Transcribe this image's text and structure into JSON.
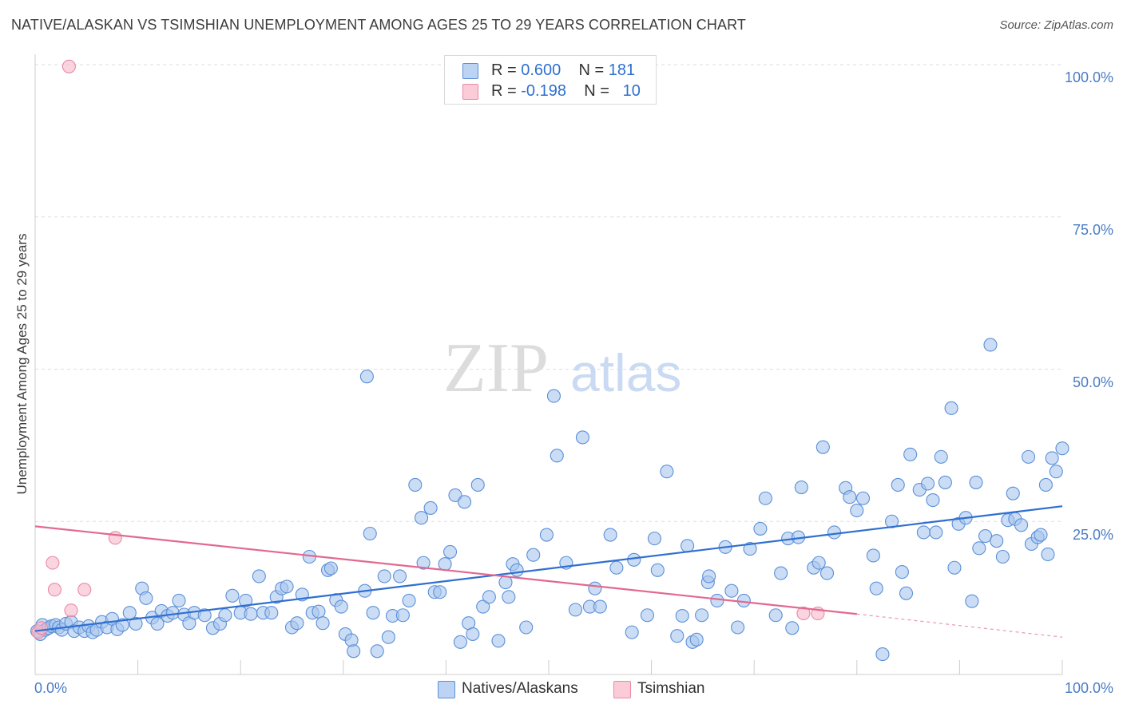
{
  "header": {
    "title": "NATIVE/ALASKAN VS TSIMSHIAN UNEMPLOYMENT AMONG AGES 25 TO 29 YEARS CORRELATION CHART",
    "source": "Source: ZipAtlas.com"
  },
  "watermark": {
    "zip": "ZIP",
    "atlas": "atlas"
  },
  "stats": {
    "row1": {
      "r_label": "R = ",
      "r_value": "0.600",
      "n_label": "N = ",
      "n_value": "181"
    },
    "row2": {
      "r_label": "R = ",
      "r_value": "-0.198",
      "n_label": "N = ",
      "n_value": "10"
    }
  },
  "legend": {
    "item1": "Natives/Alaskans",
    "item2": "Tsimshian"
  },
  "colors": {
    "blue_fill": "#a9c6ef",
    "blue_stroke": "#5b8fd8",
    "blue_line": "#2f6fd0",
    "pink_fill": "#f6b9cb",
    "pink_stroke": "#e98aa8",
    "pink_line": "#e2698f",
    "tick_text": "#4a7cc4",
    "grid": "#dddddd"
  },
  "chart_data": {
    "type": "scatter",
    "title": "NATIVE/ALASKAN VS TSIMSHIAN UNEMPLOYMENT AMONG AGES 25 TO 29 YEARS CORRELATION CHART",
    "xlabel": "",
    "ylabel": "Unemployment Among Ages 25 to 29 years",
    "xlim": [
      0,
      100
    ],
    "ylim": [
      0,
      100
    ],
    "x_tick_labels": [
      "0.0%",
      "100.0%"
    ],
    "y_ticks": [
      25,
      50,
      75,
      100
    ],
    "y_tick_labels": [
      "25.0%",
      "50.0%",
      "75.0%",
      "100.0%"
    ],
    "grid": "horizontal dashed",
    "legend_position": "bottom-center",
    "series": [
      {
        "name": "Natives/Alaskans",
        "R": 0.6,
        "N": 181,
        "trend": {
          "x": [
            0,
            100
          ],
          "y": [
            7,
            27.5
          ]
        },
        "points": [
          [
            0.2,
            7.0
          ],
          [
            0.5,
            6.5
          ],
          [
            0.7,
            8.0
          ],
          [
            1.0,
            7.2
          ],
          [
            1.3,
            7.5
          ],
          [
            1.6,
            7.8
          ],
          [
            2.0,
            8.0
          ],
          [
            2.3,
            7.6
          ],
          [
            2.6,
            7.2
          ],
          [
            3.0,
            8.2
          ],
          [
            3.5,
            8.5
          ],
          [
            3.8,
            7.0
          ],
          [
            4.3,
            7.6
          ],
          [
            4.8,
            7.0
          ],
          [
            5.2,
            7.8
          ],
          [
            5.6,
            6.8
          ],
          [
            6.0,
            7.2
          ],
          [
            6.5,
            8.5
          ],
          [
            7.0,
            7.6
          ],
          [
            7.5,
            9.0
          ],
          [
            8.0,
            7.3
          ],
          [
            8.5,
            8.0
          ],
          [
            9.2,
            10.0
          ],
          [
            9.8,
            8.2
          ],
          [
            10.4,
            14.0
          ],
          [
            10.8,
            12.4
          ],
          [
            11.4,
            9.2
          ],
          [
            11.9,
            8.2
          ],
          [
            12.3,
            10.3
          ],
          [
            12.9,
            9.5
          ],
          [
            13.4,
            10.0
          ],
          [
            14.0,
            12.0
          ],
          [
            14.5,
            9.7
          ],
          [
            15.0,
            8.3
          ],
          [
            15.5,
            10.0
          ],
          [
            16.5,
            9.6
          ],
          [
            17.3,
            7.5
          ],
          [
            18.0,
            8.2
          ],
          [
            18.5,
            9.6
          ],
          [
            19.2,
            12.8
          ],
          [
            20.0,
            10.0
          ],
          [
            20.5,
            12.0
          ],
          [
            21.0,
            9.8
          ],
          [
            21.8,
            16.0
          ],
          [
            22.2,
            10.0
          ],
          [
            23.0,
            10.0
          ],
          [
            23.5,
            12.6
          ],
          [
            24.0,
            14.0
          ],
          [
            24.5,
            14.3
          ],
          [
            25.0,
            7.6
          ],
          [
            25.5,
            8.3
          ],
          [
            26.0,
            13.0
          ],
          [
            26.7,
            19.2
          ],
          [
            27.0,
            10.0
          ],
          [
            27.6,
            10.2
          ],
          [
            28.0,
            8.3
          ],
          [
            28.5,
            17.0
          ],
          [
            28.8,
            17.3
          ],
          [
            29.3,
            12.1
          ],
          [
            29.8,
            11.0
          ],
          [
            30.2,
            6.5
          ],
          [
            30.8,
            5.5
          ],
          [
            31.0,
            3.7
          ],
          [
            32.1,
            13.6
          ],
          [
            32.6,
            23.0
          ],
          [
            32.3,
            48.8
          ],
          [
            32.9,
            10.0
          ],
          [
            33.3,
            3.7
          ],
          [
            34.0,
            16.0
          ],
          [
            34.4,
            6.0
          ],
          [
            34.8,
            9.5
          ],
          [
            35.5,
            16.0
          ],
          [
            35.8,
            9.6
          ],
          [
            36.4,
            12.0
          ],
          [
            37.0,
            31.0
          ],
          [
            37.6,
            25.6
          ],
          [
            37.8,
            18.2
          ],
          [
            38.5,
            27.2
          ],
          [
            38.9,
            13.4
          ],
          [
            39.4,
            13.4
          ],
          [
            39.9,
            18.0
          ],
          [
            40.4,
            20.0
          ],
          [
            40.9,
            29.3
          ],
          [
            41.4,
            5.2
          ],
          [
            41.8,
            28.2
          ],
          [
            42.2,
            8.3
          ],
          [
            42.6,
            6.5
          ],
          [
            43.1,
            31.0
          ],
          [
            43.6,
            11.0
          ],
          [
            44.2,
            12.6
          ],
          [
            45.1,
            5.4
          ],
          [
            45.8,
            15.0
          ],
          [
            46.5,
            18.0
          ],
          [
            46.1,
            12.6
          ],
          [
            46.9,
            17.0
          ],
          [
            47.8,
            7.6
          ],
          [
            48.5,
            19.5
          ],
          [
            49.8,
            22.8
          ],
          [
            50.5,
            45.6
          ],
          [
            50.8,
            35.8
          ],
          [
            51.7,
            18.2
          ],
          [
            52.6,
            10.5
          ],
          [
            53.3,
            38.8
          ],
          [
            54.0,
            11.0
          ],
          [
            54.5,
            14.0
          ],
          [
            55.0,
            11.0
          ],
          [
            56.0,
            22.8
          ],
          [
            56.6,
            17.4
          ],
          [
            58.1,
            6.8
          ],
          [
            58.3,
            18.7
          ],
          [
            59.6,
            9.6
          ],
          [
            60.3,
            22.2
          ],
          [
            60.6,
            17.0
          ],
          [
            61.5,
            33.2
          ],
          [
            62.5,
            6.2
          ],
          [
            63.0,
            9.5
          ],
          [
            63.5,
            21.0
          ],
          [
            64.0,
            5.2
          ],
          [
            64.4,
            5.6
          ],
          [
            64.9,
            9.6
          ],
          [
            65.5,
            15.0
          ],
          [
            65.6,
            16.0
          ],
          [
            66.4,
            12.0
          ],
          [
            67.2,
            20.8
          ],
          [
            67.8,
            13.6
          ],
          [
            68.4,
            7.6
          ],
          [
            69.0,
            12.0
          ],
          [
            69.6,
            20.5
          ],
          [
            70.6,
            23.8
          ],
          [
            71.1,
            28.8
          ],
          [
            72.1,
            9.6
          ],
          [
            72.6,
            16.5
          ],
          [
            73.3,
            22.2
          ],
          [
            73.7,
            7.5
          ],
          [
            74.3,
            22.4
          ],
          [
            74.6,
            30.6
          ],
          [
            75.8,
            17.4
          ],
          [
            76.3,
            18.2
          ],
          [
            76.7,
            37.2
          ],
          [
            77.1,
            16.5
          ],
          [
            77.8,
            23.2
          ],
          [
            78.9,
            30.5
          ],
          [
            79.3,
            29.0
          ],
          [
            80.0,
            26.8
          ],
          [
            80.6,
            28.8
          ],
          [
            81.6,
            19.4
          ],
          [
            81.9,
            14.0
          ],
          [
            82.5,
            3.2
          ],
          [
            83.4,
            25.0
          ],
          [
            84.0,
            31.0
          ],
          [
            84.4,
            16.7
          ],
          [
            84.8,
            13.2
          ],
          [
            85.2,
            36.0
          ],
          [
            86.1,
            30.2
          ],
          [
            86.5,
            23.2
          ],
          [
            86.9,
            31.2
          ],
          [
            87.4,
            28.5
          ],
          [
            87.7,
            23.2
          ],
          [
            88.2,
            35.6
          ],
          [
            88.6,
            31.4
          ],
          [
            89.2,
            43.6
          ],
          [
            89.5,
            17.4
          ],
          [
            89.9,
            24.6
          ],
          [
            90.6,
            25.6
          ],
          [
            91.2,
            11.9
          ],
          [
            91.6,
            31.4
          ],
          [
            91.9,
            20.6
          ],
          [
            92.5,
            22.6
          ],
          [
            93.0,
            54.0
          ],
          [
            93.6,
            21.8
          ],
          [
            94.2,
            19.2
          ],
          [
            94.7,
            25.2
          ],
          [
            95.2,
            29.6
          ],
          [
            95.4,
            25.4
          ],
          [
            96.0,
            24.4
          ],
          [
            96.7,
            35.6
          ],
          [
            97.0,
            21.3
          ],
          [
            97.6,
            22.4
          ],
          [
            97.9,
            22.8
          ],
          [
            98.4,
            31.0
          ],
          [
            98.6,
            19.6
          ],
          [
            99.0,
            35.4
          ],
          [
            99.4,
            33.2
          ],
          [
            100.0,
            37.0
          ]
        ]
      },
      {
        "name": "Tsimshian",
        "R": -0.198,
        "N": 10,
        "trend": {
          "x": [
            0,
            80,
            100
          ],
          "y": [
            24.2,
            9.8,
            6.0
          ],
          "solid_until": 80
        },
        "points": [
          [
            0.3,
            6.8
          ],
          [
            0.6,
            7.5
          ],
          [
            3.3,
            99.7
          ],
          [
            1.7,
            18.2
          ],
          [
            1.9,
            13.8
          ],
          [
            3.5,
            10.4
          ],
          [
            4.8,
            13.8
          ],
          [
            7.8,
            22.3
          ],
          [
            74.8,
            9.9
          ],
          [
            76.2,
            9.9
          ]
        ]
      }
    ]
  }
}
